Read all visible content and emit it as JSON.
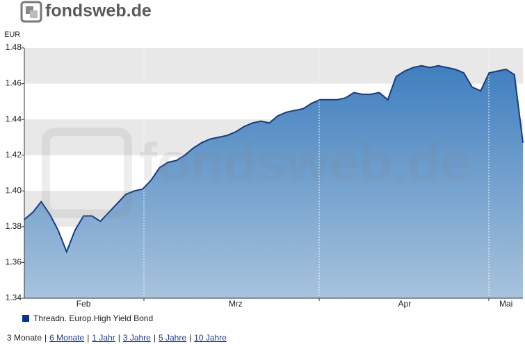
{
  "header": {
    "logo": "fondsweb.de"
  },
  "chart_data": {
    "type": "line",
    "y_label": "EUR",
    "categories": [
      null,
      null,
      null,
      null,
      null,
      null,
      null,
      "Feb",
      null,
      null,
      null,
      null,
      null,
      null,
      null,
      null,
      null,
      null,
      null,
      null,
      null,
      null,
      null,
      null,
      null,
      "Mrz",
      null,
      null,
      null,
      null,
      null,
      null,
      null,
      null,
      null,
      null,
      null,
      null,
      null,
      null,
      null,
      null,
      null,
      null,
      null,
      "Apr",
      null,
      null,
      null,
      null,
      null,
      null,
      null,
      null,
      null,
      null,
      null,
      "Mai",
      null,
      null
    ],
    "series": [
      {
        "name": "Threadn. Europ.High Yield Bond",
        "color": "#0b3d91",
        "values": [
          1.384,
          1.388,
          1.394,
          1.387,
          1.378,
          1.366,
          1.378,
          1.386,
          1.386,
          1.383,
          1.388,
          1.393,
          1.398,
          1.4,
          1.401,
          1.406,
          1.413,
          1.416,
          1.417,
          1.42,
          1.424,
          1.427,
          1.429,
          1.43,
          1.431,
          1.433,
          1.436,
          1.438,
          1.439,
          1.438,
          1.442,
          1.444,
          1.445,
          1.446,
          1.449,
          1.451,
          1.451,
          1.451,
          1.452,
          1.455,
          1.454,
          1.454,
          1.455,
          1.451,
          1.464,
          1.467,
          1.469,
          1.47,
          1.469,
          1.47,
          1.469,
          1.468,
          1.466,
          1.458,
          1.456,
          1.466,
          1.467,
          1.468,
          1.465,
          1.427
        ]
      }
    ],
    "ylim": [
      1.34,
      1.48
    ],
    "yticks": [
      1.34,
      1.36,
      1.38,
      {
        "value": 1.4,
        "label": "1.40"
      },
      1.42,
      1.44,
      1.46,
      1.48
    ],
    "grid": true
  },
  "footer": {
    "periods": [
      "3 Monate",
      "6 Monate",
      "1 Jahr",
      "3 Jahre",
      "5 Jahre",
      "10 Jahre"
    ],
    "separator": "|"
  }
}
